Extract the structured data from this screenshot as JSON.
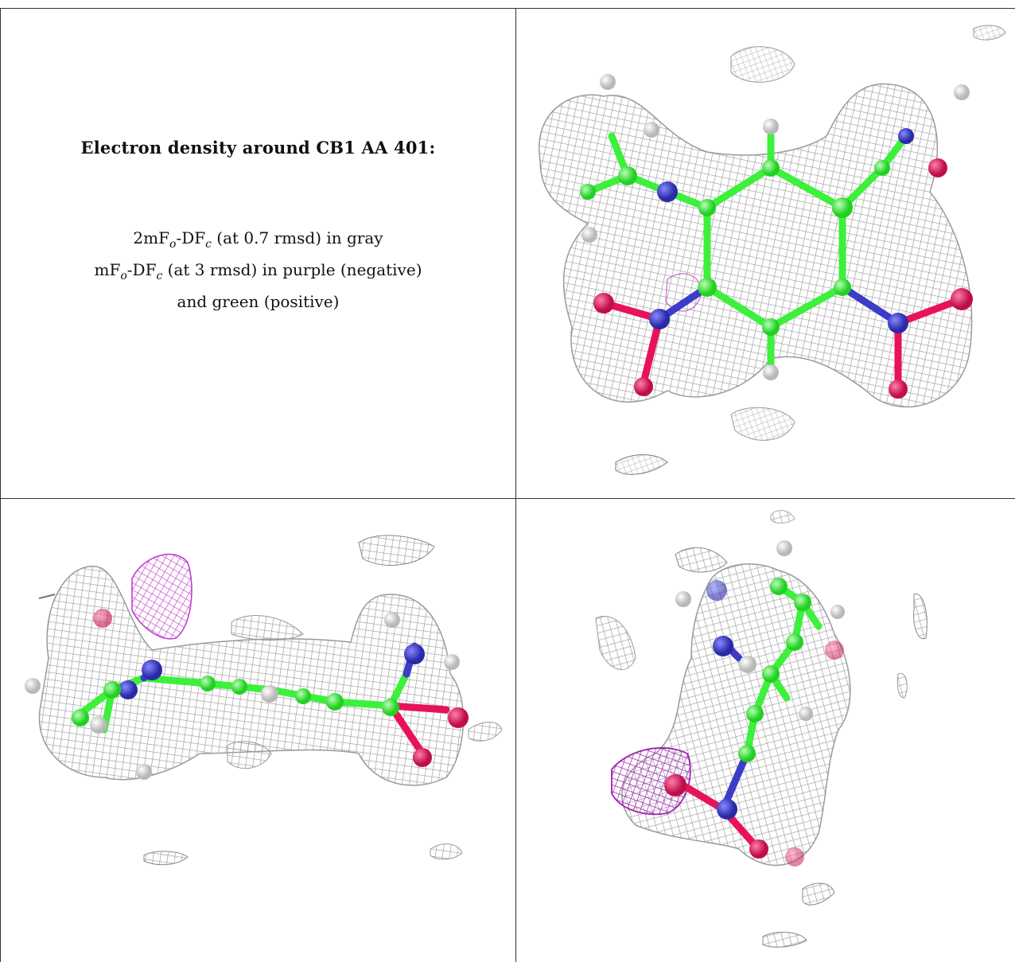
{
  "figure": {
    "title": "Electron density around CB1 AA 401:",
    "legend": {
      "line1_prefix": "2mF",
      "line1_sub1": "o",
      "line1_mid": "-DF",
      "line1_sub2": "c",
      "line1_suffix": " (at 0.7 rmsd) in gray",
      "line2_prefix": "mF",
      "line2_sub1": "o",
      "line2_mid": "-DF",
      "line2_sub2": "c",
      "line2_suffix": " (at 3 rmsd) in purple (negative)",
      "line3": "and green (positive)"
    }
  },
  "colors": {
    "mesh_gray": "#9a9a9a",
    "mesh_purple": "#c13ec9",
    "carbon": "#3cf03c",
    "nitrogen": "#3c3cc8",
    "oxygen": "#e8125c",
    "hydrogen": "#e8e8e8",
    "border": "#333333"
  },
  "panels": [
    {
      "name": "top-right",
      "view": "face-on"
    },
    {
      "name": "bottom-left",
      "view": "side-on"
    },
    {
      "name": "bottom-right",
      "view": "end-on"
    }
  ]
}
